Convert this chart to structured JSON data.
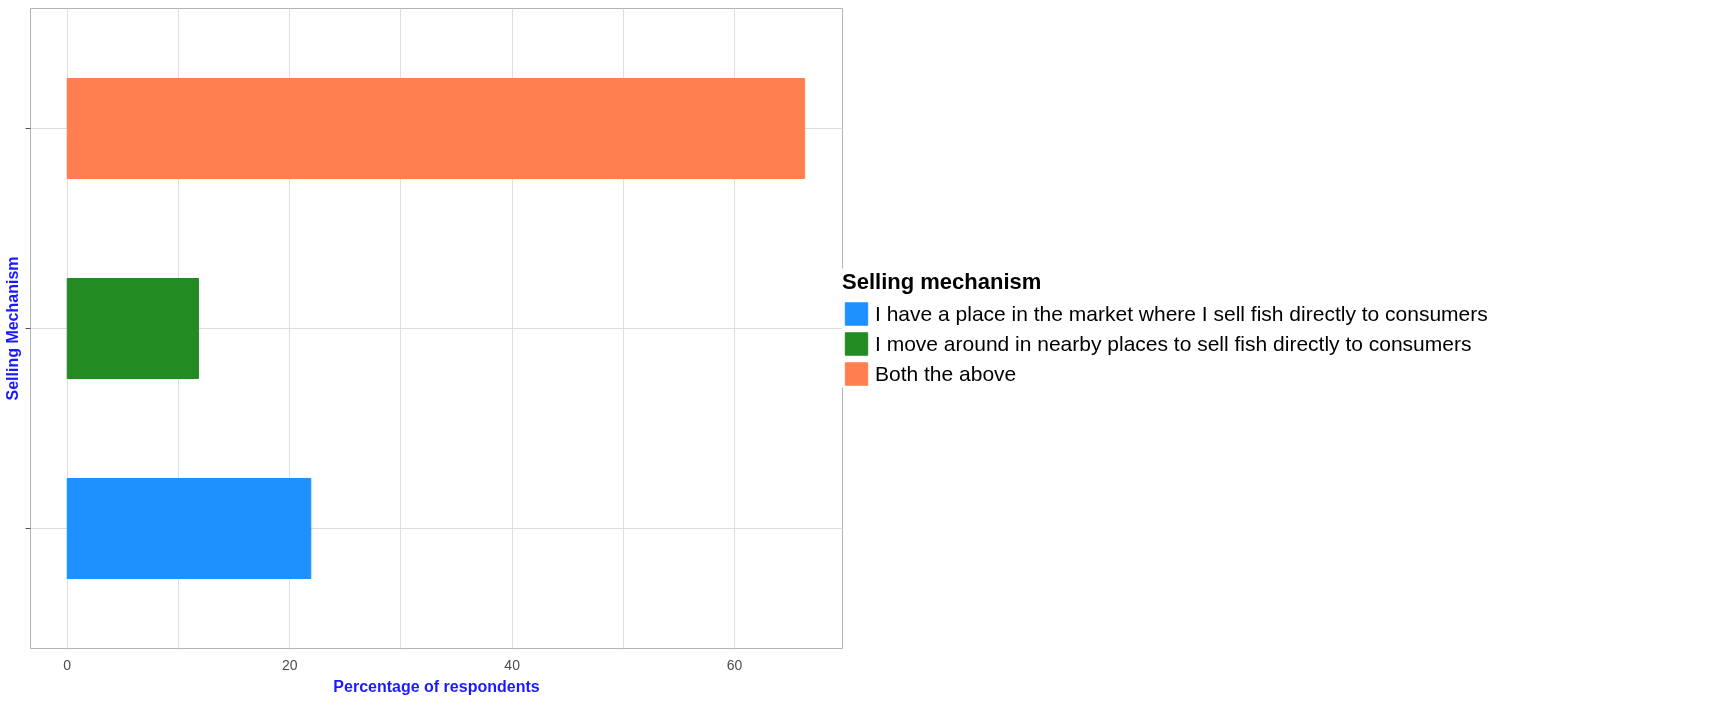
{
  "chart_data": {
    "type": "bar",
    "orientation": "horizontal",
    "stacked": true,
    "xlabel": "Percentage of respondents",
    "ylabel": "Selling Mechanism",
    "legend_title": "Selling mechanism",
    "categories": [
      null,
      null,
      null
    ],
    "series": [
      {
        "name": "I have a place in the market where I sell fish directly to consumers",
        "color": "#1e90ff",
        "values": [
          null,
          null,
          21.9
        ]
      },
      {
        "name": "I move around in nearby places to sell fish directly to consumers",
        "color": "#228b22",
        "values": [
          null,
          11.8,
          null
        ]
      },
      {
        "name": "Both the above",
        "color": "#ff7f50",
        "values": [
          66.3,
          null,
          null
        ]
      }
    ],
    "xlim": [
      -3.3,
      69.7
    ],
    "xticks": [
      0,
      {
        "value": 10,
        "label": null
      },
      20,
      {
        "value": 30,
        "label": null
      },
      40,
      {
        "value": 50,
        "label": null
      },
      60
    ],
    "grid": true,
    "legend": "right"
  }
}
